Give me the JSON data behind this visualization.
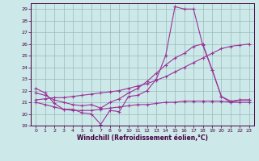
{
  "xlabel": "Windchill (Refroidissement éolien,°C)",
  "xlim": [
    -0.5,
    23.5
  ],
  "ylim": [
    19,
    29.5
  ],
  "yticks": [
    19,
    20,
    21,
    22,
    23,
    24,
    25,
    26,
    27,
    28,
    29
  ],
  "xticks": [
    0,
    1,
    2,
    3,
    4,
    5,
    6,
    7,
    8,
    9,
    10,
    11,
    12,
    13,
    14,
    15,
    16,
    17,
    18,
    19,
    20,
    21,
    22,
    23
  ],
  "background_color": "#cce8e8",
  "grid_color": "#99bbbb",
  "line_color": "#993399",
  "curves": [
    {
      "x": [
        0,
        1,
        2,
        3,
        4,
        5,
        6,
        7,
        8,
        9,
        10,
        11,
        12,
        13,
        14,
        15,
        16,
        17,
        18,
        19,
        20,
        21,
        22,
        23
      ],
      "y": [
        22.2,
        21.8,
        20.9,
        20.4,
        20.4,
        20.1,
        20.0,
        19.1,
        20.3,
        20.2,
        21.5,
        21.6,
        22.0,
        23.0,
        25.0,
        29.2,
        29.0,
        29.0,
        25.9,
        23.8,
        21.5,
        21.1,
        21.2,
        21.2
      ]
    },
    {
      "x": [
        0,
        1,
        2,
        3,
        4,
        5,
        6,
        7,
        8,
        9,
        10,
        11,
        12,
        13,
        14,
        15,
        16,
        17,
        18,
        19,
        20,
        21,
        22,
        23
      ],
      "y": [
        21.0,
        20.8,
        20.6,
        20.4,
        20.3,
        20.3,
        20.3,
        20.4,
        20.5,
        20.6,
        20.7,
        20.8,
        20.8,
        20.9,
        21.0,
        21.0,
        21.1,
        21.1,
        21.1,
        21.1,
        21.1,
        21.0,
        21.0,
        21.0
      ]
    },
    {
      "x": [
        0,
        1,
        2,
        3,
        4,
        5,
        6,
        7,
        8,
        9,
        10,
        11,
        12,
        13,
        14,
        15,
        16,
        17,
        18,
        19,
        20,
        21,
        22,
        23
      ],
      "y": [
        21.2,
        21.3,
        21.4,
        21.4,
        21.5,
        21.6,
        21.7,
        21.8,
        21.9,
        22.0,
        22.2,
        22.4,
        22.6,
        22.9,
        23.2,
        23.6,
        24.0,
        24.4,
        24.8,
        25.2,
        25.6,
        25.8,
        25.9,
        26.0
      ]
    },
    {
      "x": [
        0,
        1,
        2,
        3,
        4,
        5,
        6,
        7,
        8,
        9,
        10,
        11,
        12,
        13,
        14,
        15,
        16,
        17,
        18,
        19,
        20,
        21,
        22,
        23
      ],
      "y": [
        21.8,
        21.6,
        21.2,
        21.0,
        20.8,
        20.7,
        20.8,
        20.5,
        21.0,
        21.3,
        21.8,
        22.2,
        22.8,
        23.5,
        24.2,
        24.8,
        25.2,
        25.8,
        26.0,
        23.8,
        21.5,
        21.0,
        21.2,
        21.2
      ]
    }
  ]
}
